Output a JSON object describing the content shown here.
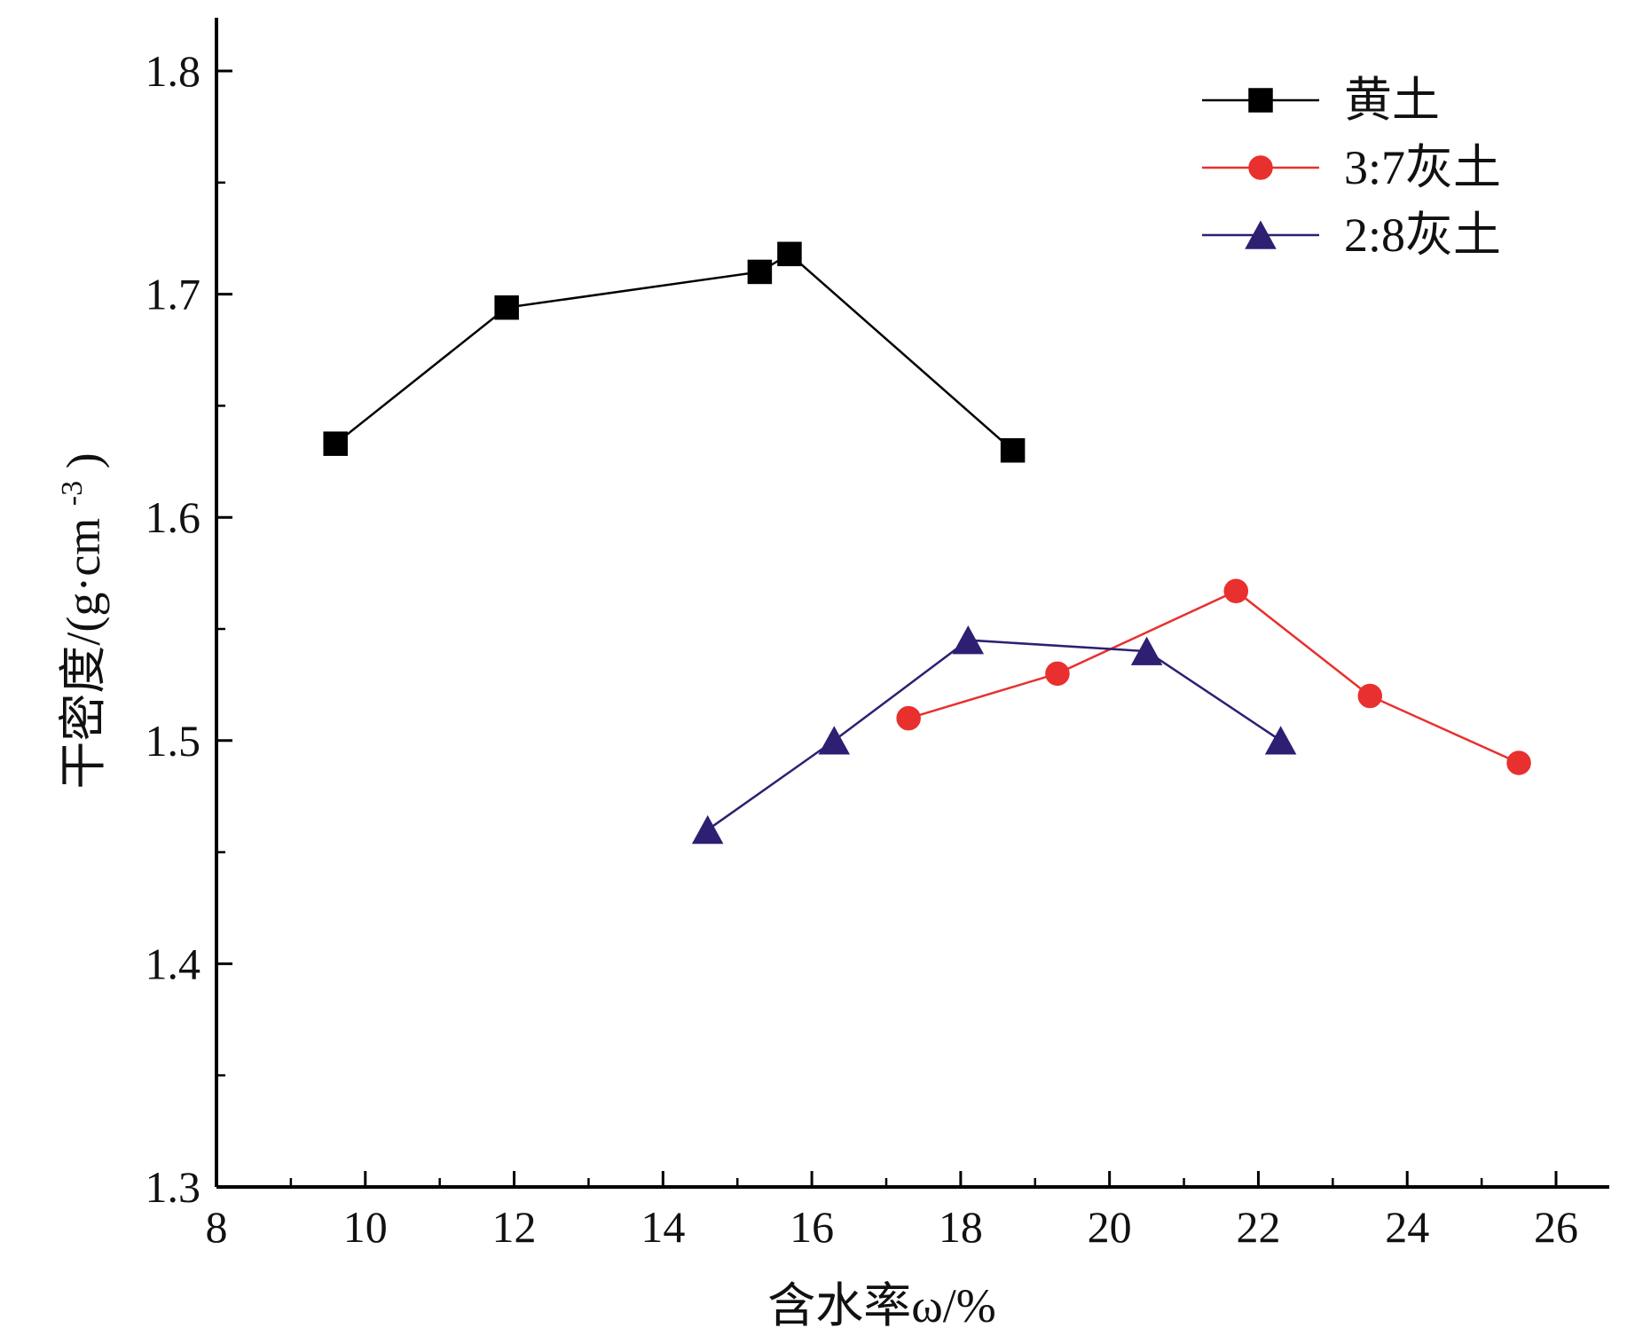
{
  "chart_data": {
    "type": "line",
    "title": "",
    "xlabel": "含水率ω/%",
    "ylabel": "干密度/(g·cm-3)",
    "ylabel_main": "干密度/(g·cm",
    "ylabel_sup": "-3",
    "ylabel_tail": ")",
    "xlim": [
      8,
      26
    ],
    "ylim": [
      1.3,
      1.8
    ],
    "xticks": [
      8,
      10,
      12,
      14,
      16,
      18,
      20,
      22,
      24,
      26
    ],
    "yticks": [
      1.3,
      1.4,
      1.5,
      1.6,
      1.7,
      1.8
    ],
    "xtick_labels": [
      "8",
      "10",
      "12",
      "14",
      "16",
      "18",
      "20",
      "22",
      "24",
      "26"
    ],
    "ytick_labels": [
      "1.3",
      "1.4",
      "1.5",
      "1.6",
      "1.7",
      "1.8"
    ],
    "grid": false,
    "legend_position": "top-right",
    "series": [
      {
        "name": "黄土",
        "color": "#000000",
        "marker": "square",
        "x": [
          9.6,
          11.9,
          15.3,
          15.7,
          18.7
        ],
        "y": [
          1.633,
          1.694,
          1.71,
          1.718,
          1.63
        ]
      },
      {
        "name": "3:7灰土",
        "color": "#e8302e",
        "marker": "circle",
        "x": [
          17.3,
          19.3,
          21.7,
          23.5,
          25.5
        ],
        "y": [
          1.51,
          1.53,
          1.567,
          1.52,
          1.49
        ]
      },
      {
        "name": "2:8灰土",
        "color": "#2e1f73",
        "marker": "triangle",
        "x": [
          14.6,
          16.3,
          18.1,
          20.5,
          22.3
        ],
        "y": [
          1.46,
          1.5,
          1.545,
          1.54,
          1.5
        ]
      }
    ]
  }
}
